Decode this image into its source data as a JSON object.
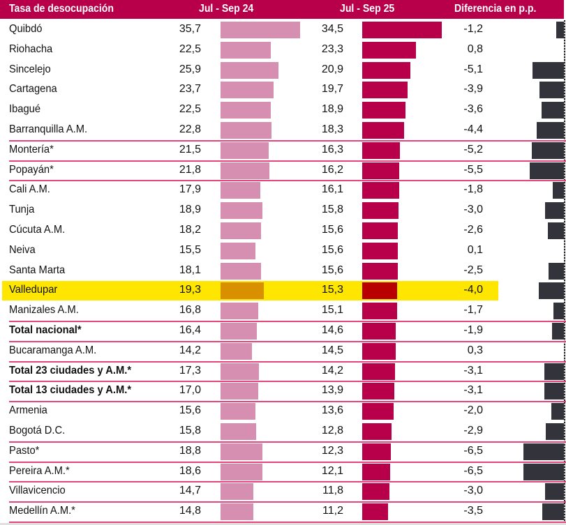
{
  "header": {
    "col_name": "Tasa de desocupación",
    "col_2024": "Jul - Sep 24",
    "col_2025": "Jul - Sep 25",
    "col_diff": "Diferencia en p.p."
  },
  "colors": {
    "header_bg": "#b8004a",
    "bar_2024": "#d68fb1",
    "bar_2025": "#b8004a",
    "bar_diff": "#33333b",
    "highlight_bg": "#ffe600",
    "highlight_bar_2024": "#d88f00",
    "highlight_bar_2025": "#b80000",
    "divider": "#e8447a"
  },
  "chart_data": {
    "type": "table",
    "title": "Tasa de desocupación",
    "columns": [
      "Tasa de desocupación",
      "Jul - Sep 24",
      "Jul - Sep 25",
      "Diferencia en p.p."
    ],
    "highlighted_row": "Valledupar",
    "rows": [
      {
        "name": "Quibdó",
        "v24": "35,7",
        "v25": "34,5",
        "diff": "-1,2",
        "bold": false,
        "divider": false
      },
      {
        "name": "Riohacha",
        "v24": "22,5",
        "v25": "23,3",
        "diff": "0,8",
        "bold": false,
        "divider": false
      },
      {
        "name": "Sincelejo",
        "v24": "25,9",
        "v25": "20,9",
        "diff": "-5,1",
        "bold": false,
        "divider": false
      },
      {
        "name": "Cartagena",
        "v24": "23,7",
        "v25": "19,7",
        "diff": "-3,9",
        "bold": false,
        "divider": false
      },
      {
        "name": "Ibagué",
        "v24": "22,5",
        "v25": "18,9",
        "diff": "-3,6",
        "bold": false,
        "divider": false
      },
      {
        "name": "Barranquilla A.M.",
        "v24": "22,8",
        "v25": "18,3",
        "diff": "-4,4",
        "bold": false,
        "divider": true
      },
      {
        "name": "Montería*",
        "v24": "21,5",
        "v25": "16,3",
        "diff": "-5,2",
        "bold": false,
        "divider": true
      },
      {
        "name": "Popayán*",
        "v24": "21,8",
        "v25": "16,2",
        "diff": "-5,5",
        "bold": false,
        "divider": true
      },
      {
        "name": "Cali A.M.",
        "v24": "17,9",
        "v25": "16,1",
        "diff": "-1,8",
        "bold": false,
        "divider": false
      },
      {
        "name": "Tunja",
        "v24": "18,9",
        "v25": "15,8",
        "diff": "-3,0",
        "bold": false,
        "divider": false
      },
      {
        "name": "Cúcuta A.M.",
        "v24": "18,2",
        "v25": "15,6",
        "diff": "-2,6",
        "bold": false,
        "divider": false
      },
      {
        "name": "Neiva",
        "v24": "15,5",
        "v25": "15,6",
        "diff": "0,1",
        "bold": false,
        "divider": false
      },
      {
        "name": "Santa Marta",
        "v24": "18,1",
        "v25": "15,6",
        "diff": "-2,5",
        "bold": false,
        "divider": false
      },
      {
        "name": "Valledupar",
        "v24": "19,3",
        "v25": "15,3",
        "diff": "-4,0",
        "bold": false,
        "divider": false
      },
      {
        "name": "Manizales A.M.",
        "v24": "16,8",
        "v25": "15,1",
        "diff": "-1,7",
        "bold": false,
        "divider": true
      },
      {
        "name": "Total nacional*",
        "v24": "16,4",
        "v25": "14,6",
        "diff": "-1,9",
        "bold": true,
        "divider": true
      },
      {
        "name": "Bucaramanga A.M.",
        "v24": "14,2",
        "v25": "14,5",
        "diff": "0,3",
        "bold": false,
        "divider": true
      },
      {
        "name": "Total 23 ciudades y A.M.*",
        "v24": "17,3",
        "v25": "14,2",
        "diff": "-3,1",
        "bold": true,
        "divider": true
      },
      {
        "name": "Total 13 ciudades y A.M.*",
        "v24": "17,0",
        "v25": "13,9",
        "diff": "-3,1",
        "bold": true,
        "divider": true
      },
      {
        "name": "Armenia",
        "v24": "15,6",
        "v25": "13,6",
        "diff": "-2,0",
        "bold": false,
        "divider": false
      },
      {
        "name": "Bogotá D.C.",
        "v24": "15,8",
        "v25": "12,8",
        "diff": "-2,9",
        "bold": false,
        "divider": true
      },
      {
        "name": "Pasto*",
        "v24": "18,8",
        "v25": "12,3",
        "diff": "-6,5",
        "bold": false,
        "divider": true
      },
      {
        "name": "Pereira A.M.*",
        "v24": "18,6",
        "v25": "12,1",
        "diff": "-6,5",
        "bold": false,
        "divider": true
      },
      {
        "name": "Villavicencio",
        "v24": "14,7",
        "v25": "11,8",
        "diff": "-3,0",
        "bold": false,
        "divider": true
      },
      {
        "name": "Medellín A.M.*",
        "v24": "14,8",
        "v25": "11,2",
        "diff": "-3,5",
        "bold": false,
        "divider": true
      }
    ]
  }
}
